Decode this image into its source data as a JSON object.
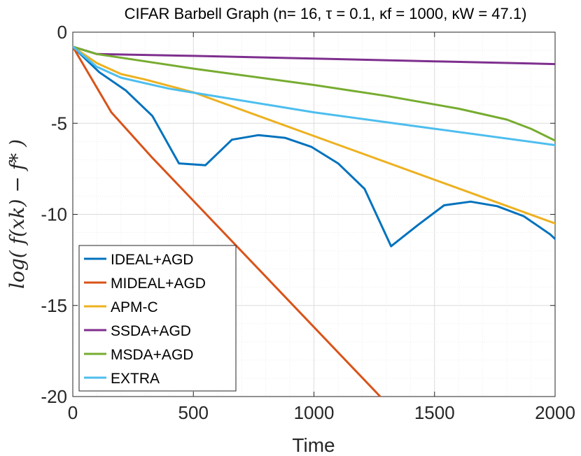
{
  "chart_data": {
    "type": "line",
    "title": "CIFAR Barbell Graph (n= 16, τ = 0.1, κf = 1000, κW = 47.1)",
    "xlabel": "Time",
    "ylabel": "log( f(xk) − f* )",
    "xlim": [
      0,
      2000
    ],
    "ylim": [
      -20,
      0
    ],
    "xticks": [
      0,
      500,
      1000,
      1500,
      2000
    ],
    "yticks": [
      0,
      -5,
      -10,
      -15,
      -20
    ],
    "xtick_labels": [
      "0",
      "500",
      "1000",
      "1500",
      "2000"
    ],
    "ytick_labels": [
      "0",
      "-5",
      "-10",
      "-15",
      "-20"
    ],
    "grid": true,
    "legend_position": "bottom-left",
    "series": [
      {
        "name": "IDEAL+AGD",
        "color": "#0072BD",
        "x": [
          0,
          110,
          220,
          330,
          440,
          550,
          660,
          770,
          880,
          990,
          1100,
          1210,
          1320,
          1430,
          1540,
          1650,
          1760,
          1870,
          1980,
          2000
        ],
        "y": [
          -0.8,
          -2.2,
          -3.2,
          -4.6,
          -7.2,
          -7.3,
          -5.9,
          -5.65,
          -5.8,
          -6.3,
          -7.2,
          -8.6,
          -11.75,
          -10.6,
          -9.5,
          -9.3,
          -9.55,
          -10.1,
          -11.1,
          -11.35
        ]
      },
      {
        "name": "MIDEAL+AGD",
        "color": "#D95319",
        "x": [
          0,
          160,
          330,
          1275
        ],
        "y": [
          -0.8,
          -4.4,
          -6.9,
          -20.0
        ]
      },
      {
        "name": "APM-C",
        "color": "#EDB120",
        "x": [
          0,
          100,
          200,
          300,
          500,
          1000,
          1500,
          2000
        ],
        "y": [
          -0.8,
          -1.7,
          -2.3,
          -2.6,
          -3.3,
          -5.7,
          -8.1,
          -10.5
        ]
      },
      {
        "name": "SSDA+AGD",
        "color": "#7E2F8E",
        "x": [
          0,
          100,
          500,
          1000,
          1500,
          2000
        ],
        "y": [
          -0.8,
          -1.2,
          -1.3,
          -1.45,
          -1.6,
          -1.75
        ]
      },
      {
        "name": "MSDA+AGD",
        "color": "#77AC30",
        "x": [
          0,
          100,
          500,
          1000,
          1300,
          1600,
          1800,
          1900,
          2000
        ],
        "y": [
          -0.8,
          -1.2,
          -2.0,
          -2.9,
          -3.5,
          -4.2,
          -4.8,
          -5.3,
          -5.95
        ]
      },
      {
        "name": "EXTRA",
        "color": "#4DBEEE",
        "x": [
          0,
          100,
          200,
          400,
          1000,
          1500,
          2000
        ],
        "y": [
          -0.8,
          -1.9,
          -2.5,
          -3.1,
          -4.4,
          -5.3,
          -6.2
        ]
      }
    ]
  }
}
